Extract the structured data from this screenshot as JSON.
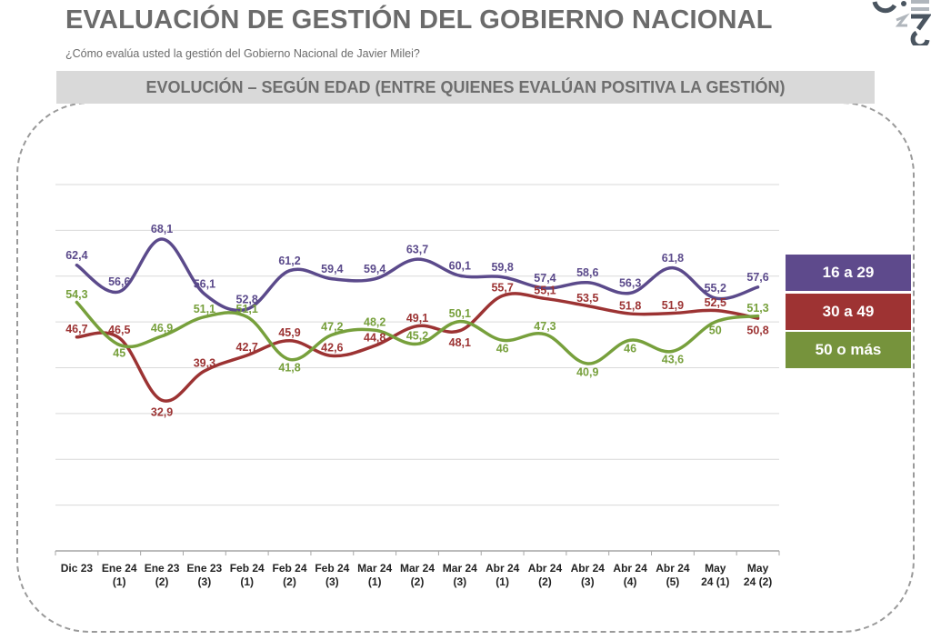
{
  "header": {
    "title": "EVALUACIÓN DE GESTIÓN DEL GOBIERNO NACIONAL",
    "subtitle": "¿Cómo evalúa usted la gestión del Gobierno Nacional de Javier Milei?",
    "banner": "EVOLUCIÓN – SEGÚN EDAD (ENTRE QUIENES EVALÚAN POSITIVA LA GESTIÓN)"
  },
  "logo": {
    "icon": "brand-logo-icon"
  },
  "chart_data": {
    "type": "line",
    "title": "EVOLUCIÓN – SEGÚN EDAD (ENTRE QUIENES EVALÚAN POSITIVA LA GESTIÓN)",
    "xlabel": "",
    "ylabel": "",
    "ylim": [
      0,
      80
    ],
    "grid": true,
    "gridlines_every": 10,
    "legend_position": "right",
    "smooth": true,
    "categories": [
      "Dic 23",
      "Ene 24\n(1)",
      "Ene 23\n(2)",
      "Ene 23\n(3)",
      "Feb 24\n(1)",
      "Feb 24\n(2)",
      "Feb 24\n(3)",
      "Mar 24\n(1)",
      "Mar 24\n(2)",
      "Mar 24\n(3)",
      "Abr 24\n(1)",
      "Abr 24\n(2)",
      "Abr 24\n(3)",
      "Abr 24\n(4)",
      "Abr 24\n(5)",
      "May\n24 (1)",
      "May\n24 (2)"
    ],
    "series": [
      {
        "name": "16 a 29",
        "color": "#5b4a8b",
        "values": [
          62.4,
          56.6,
          68.1,
          56.1,
          52.8,
          61.2,
          59.4,
          59.4,
          63.7,
          60.1,
          59.8,
          57.4,
          58.6,
          56.3,
          61.8,
          55.2,
          57.6
        ],
        "labels": [
          "62,4",
          "56,6",
          "68,1",
          "56,1",
          "52,8",
          "61,2",
          "59,4",
          "59,4",
          "63,7",
          "60,1",
          "59,8",
          "57,4",
          "58,6",
          "56,3",
          "61,8",
          "55,2",
          "57,6"
        ]
      },
      {
        "name": "30 a 49",
        "color": "#9c3333",
        "values": [
          46.7,
          46.5,
          32.9,
          39.3,
          42.7,
          45.9,
          42.6,
          44.8,
          49.1,
          48.1,
          55.7,
          55.1,
          53.5,
          51.8,
          51.9,
          52.5,
          50.8
        ],
        "labels": [
          "46,7",
          "46,5",
          "32,9",
          "39,3",
          "42,7",
          "45,9",
          "42,6",
          "44,8",
          "49,1",
          "48,1",
          "55,7",
          "55,1",
          "53,5",
          "51,8",
          "51,9",
          "52,5",
          "50,8"
        ]
      },
      {
        "name": "50 o más",
        "color": "#77a03c",
        "values": [
          54.3,
          45,
          46.9,
          51.1,
          51.1,
          41.8,
          47.2,
          48.2,
          45.2,
          50.1,
          46,
          47.3,
          40.9,
          46,
          43.6,
          50,
          51.3
        ],
        "labels": [
          "54,3",
          "45",
          "46,9",
          "51,1",
          "51,1",
          "41,8",
          "47,2",
          "48,2",
          "45,2",
          "50,1",
          "46",
          "47,3",
          "40,9",
          "46",
          "43,6",
          "50",
          "51,3"
        ]
      }
    ]
  },
  "legend": [
    {
      "label": "16 a 29",
      "color": "#5e4a8c"
    },
    {
      "label": "30 a 49",
      "color": "#9e3333"
    },
    {
      "label": "50 o más",
      "color": "#76933c"
    }
  ]
}
